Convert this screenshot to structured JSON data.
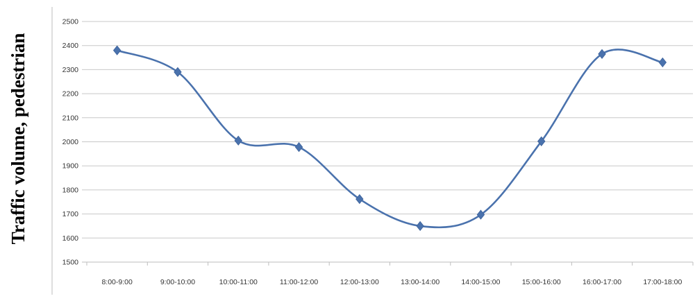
{
  "chart_data": {
    "type": "line",
    "title": "",
    "xlabel": "",
    "ylabel": "Traffic volume, pedestrian",
    "ylim": [
      1500,
      2500
    ],
    "yticks": [
      1500,
      1600,
      1700,
      1800,
      1900,
      2000,
      2100,
      2200,
      2300,
      2400,
      2500
    ],
    "grid": true,
    "legend": "none",
    "categories": [
      "8:00-9:00",
      "9:00-10:00",
      "10:00-11:00",
      "11:00-12:00",
      "12:00-13:00",
      "13:00-14:00",
      "14:00-15:00",
      "15:00-16:00",
      "16:00-17:00",
      "17:00-18:00"
    ],
    "series": [
      {
        "values": [
          2380,
          2290,
          2005,
          1978,
          1762,
          1650,
          1697,
          2002,
          2365,
          2330
        ],
        "color": "#4a72ad",
        "marker": "diamond"
      }
    ]
  }
}
